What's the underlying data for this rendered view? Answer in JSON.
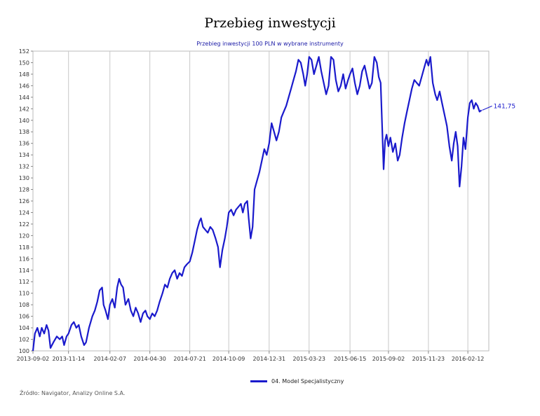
{
  "chart_data": {
    "type": "line",
    "title": "Przebieg inwestycji",
    "subtitle": "Przebieg inwestycji 100 PLN w wybrane instrumenty",
    "xlabel": "",
    "ylabel": "",
    "ylim": [
      100,
      152
    ],
    "yticks": [
      100,
      102,
      104,
      106,
      108,
      110,
      112,
      114,
      116,
      118,
      120,
      122,
      124,
      126,
      128,
      130,
      132,
      134,
      136,
      138,
      140,
      142,
      144,
      146,
      148,
      150,
      152
    ],
    "xticks": [
      "2013-09-02",
      "2013-11-14",
      "2014-02-07",
      "2014-04-30",
      "2014-07-21",
      "2014-10-09",
      "2014-12-31",
      "2015-03-23",
      "2015-06-15",
      "2015-09-02",
      "2015-11-23",
      "2016-02-12"
    ],
    "grid": "vertical",
    "legend_position": "bottom",
    "series": [
      {
        "name": "04. Model Specjalistyczny",
        "color": "#1a1acc",
        "last_value_label": "141,75",
        "points": [
          [
            "2013-09-02",
            100.0
          ],
          [
            "2013-09-06",
            103.0
          ],
          [
            "2013-09-11",
            104.0
          ],
          [
            "2013-09-16",
            102.5
          ],
          [
            "2013-09-20",
            104.0
          ],
          [
            "2013-09-25",
            103.0
          ],
          [
            "2013-09-30",
            104.5
          ],
          [
            "2013-10-04",
            103.5
          ],
          [
            "2013-10-08",
            100.5
          ],
          [
            "2013-10-14",
            101.5
          ],
          [
            "2013-10-21",
            102.5
          ],
          [
            "2013-10-27",
            102.0
          ],
          [
            "2013-11-01",
            102.5
          ],
          [
            "2013-11-05",
            101.0
          ],
          [
            "2013-11-10",
            102.5
          ],
          [
            "2013-11-14",
            103.0
          ],
          [
            "2013-11-20",
            104.5
          ],
          [
            "2013-11-25",
            105.0
          ],
          [
            "2013-11-30",
            104.0
          ],
          [
            "2013-12-05",
            104.5
          ],
          [
            "2013-12-10",
            102.5
          ],
          [
            "2013-12-16",
            101.0
          ],
          [
            "2013-12-20",
            101.5
          ],
          [
            "2013-12-26",
            104.0
          ],
          [
            "2014-01-02",
            106.0
          ],
          [
            "2014-01-07",
            107.0
          ],
          [
            "2014-01-12",
            108.5
          ],
          [
            "2014-01-17",
            110.5
          ],
          [
            "2014-01-22",
            111.0
          ],
          [
            "2014-01-25",
            108.0
          ],
          [
            "2014-01-29",
            107.0
          ],
          [
            "2014-02-03",
            105.5
          ],
          [
            "2014-02-07",
            108.0
          ],
          [
            "2014-02-12",
            109.0
          ],
          [
            "2014-02-17",
            107.5
          ],
          [
            "2014-02-22",
            111.0
          ],
          [
            "2014-02-26",
            112.5
          ],
          [
            "2014-03-02",
            111.5
          ],
          [
            "2014-03-06",
            111.0
          ],
          [
            "2014-03-11",
            108.0
          ],
          [
            "2014-03-17",
            109.0
          ],
          [
            "2014-03-22",
            107.0
          ],
          [
            "2014-03-27",
            106.0
          ],
          [
            "2014-04-01",
            107.5
          ],
          [
            "2014-04-06",
            106.5
          ],
          [
            "2014-04-11",
            105.0
          ],
          [
            "2014-04-16",
            106.5
          ],
          [
            "2014-04-21",
            107.0
          ],
          [
            "2014-04-25",
            106.0
          ],
          [
            "2014-04-30",
            105.5
          ],
          [
            "2014-05-05",
            106.5
          ],
          [
            "2014-05-10",
            106.0
          ],
          [
            "2014-05-15",
            107.0
          ],
          [
            "2014-05-20",
            108.5
          ],
          [
            "2014-05-26",
            110.0
          ],
          [
            "2014-05-31",
            111.5
          ],
          [
            "2014-06-05",
            111.0
          ],
          [
            "2014-06-10",
            112.5
          ],
          [
            "2014-06-15",
            113.5
          ],
          [
            "2014-06-20",
            114.0
          ],
          [
            "2014-06-25",
            112.5
          ],
          [
            "2014-06-30",
            113.5
          ],
          [
            "2014-07-05",
            113.0
          ],
          [
            "2014-07-10",
            114.5
          ],
          [
            "2014-07-15",
            115.0
          ],
          [
            "2014-07-21",
            115.5
          ],
          [
            "2014-07-26",
            117.0
          ],
          [
            "2014-07-31",
            119.0
          ],
          [
            "2014-08-05",
            121.0
          ],
          [
            "2014-08-10",
            122.5
          ],
          [
            "2014-08-13",
            123.0
          ],
          [
            "2014-08-17",
            121.5
          ],
          [
            "2014-08-22",
            121.0
          ],
          [
            "2014-08-27",
            120.5
          ],
          [
            "2014-09-01",
            121.5
          ],
          [
            "2014-09-06",
            121.0
          ],
          [
            "2014-09-12",
            119.5
          ],
          [
            "2014-09-17",
            118.0
          ],
          [
            "2014-09-21",
            114.5
          ],
          [
            "2014-09-26",
            117.5
          ],
          [
            "2014-10-01",
            119.5
          ],
          [
            "2014-10-05",
            121.5
          ],
          [
            "2014-10-09",
            124.0
          ],
          [
            "2014-10-14",
            124.5
          ],
          [
            "2014-10-19",
            123.5
          ],
          [
            "2014-10-24",
            124.5
          ],
          [
            "2014-10-29",
            125.0
          ],
          [
            "2014-11-03",
            125.5
          ],
          [
            "2014-11-07",
            124.0
          ],
          [
            "2014-11-11",
            125.5
          ],
          [
            "2014-11-16",
            126.0
          ],
          [
            "2014-11-19",
            123.0
          ],
          [
            "2014-11-23",
            119.5
          ],
          [
            "2014-11-27",
            121.5
          ],
          [
            "2014-12-01",
            128.0
          ],
          [
            "2014-12-06",
            129.5
          ],
          [
            "2014-12-11",
            131.0
          ],
          [
            "2014-12-16",
            133.0
          ],
          [
            "2014-12-21",
            135.0
          ],
          [
            "2014-12-26",
            134.0
          ],
          [
            "2014-12-31",
            136.0
          ],
          [
            "2015-01-05",
            139.5
          ],
          [
            "2015-01-10",
            138.0
          ],
          [
            "2015-01-15",
            136.5
          ],
          [
            "2015-01-20",
            138.0
          ],
          [
            "2015-01-25",
            140.5
          ],
          [
            "2015-01-30",
            141.5
          ],
          [
            "2015-02-04",
            142.5
          ],
          [
            "2015-02-09",
            144.0
          ],
          [
            "2015-02-14",
            145.5
          ],
          [
            "2015-02-19",
            147.0
          ],
          [
            "2015-02-24",
            148.5
          ],
          [
            "2015-03-01",
            150.5
          ],
          [
            "2015-03-06",
            150.0
          ],
          [
            "2015-03-11",
            148.0
          ],
          [
            "2015-03-15",
            146.0
          ],
          [
            "2015-03-19",
            148.0
          ],
          [
            "2015-03-23",
            151.0
          ],
          [
            "2015-03-28",
            150.5
          ],
          [
            "2015-04-02",
            148.0
          ],
          [
            "2015-04-07",
            149.5
          ],
          [
            "2015-04-12",
            151.0
          ],
          [
            "2015-04-17",
            148.5
          ],
          [
            "2015-04-22",
            146.5
          ],
          [
            "2015-04-27",
            144.5
          ],
          [
            "2015-05-02",
            146.0
          ],
          [
            "2015-05-07",
            151.0
          ],
          [
            "2015-05-12",
            150.5
          ],
          [
            "2015-05-17",
            147.0
          ],
          [
            "2015-05-22",
            145.0
          ],
          [
            "2015-05-27",
            146.0
          ],
          [
            "2015-06-01",
            148.0
          ],
          [
            "2015-06-06",
            145.5
          ],
          [
            "2015-06-11",
            147.0
          ],
          [
            "2015-06-15",
            148.0
          ],
          [
            "2015-06-20",
            149.0
          ],
          [
            "2015-06-25",
            146.5
          ],
          [
            "2015-06-30",
            144.5
          ],
          [
            "2015-07-05",
            146.0
          ],
          [
            "2015-07-10",
            148.5
          ],
          [
            "2015-07-15",
            149.5
          ],
          [
            "2015-07-20",
            147.5
          ],
          [
            "2015-07-25",
            145.5
          ],
          [
            "2015-07-30",
            146.5
          ],
          [
            "2015-08-04",
            151.0
          ],
          [
            "2015-08-09",
            150.0
          ],
          [
            "2015-08-13",
            147.5
          ],
          [
            "2015-08-17",
            146.5
          ],
          [
            "2015-08-20",
            139.0
          ],
          [
            "2015-08-23",
            131.5
          ],
          [
            "2015-08-26",
            136.5
          ],
          [
            "2015-08-29",
            137.5
          ],
          [
            "2015-09-02",
            135.5
          ],
          [
            "2015-09-06",
            137.0
          ],
          [
            "2015-09-11",
            134.5
          ],
          [
            "2015-09-16",
            136.0
          ],
          [
            "2015-09-21",
            133.0
          ],
          [
            "2015-09-25",
            134.0
          ],
          [
            "2015-09-30",
            137.0
          ],
          [
            "2015-10-05",
            139.5
          ],
          [
            "2015-10-10",
            141.5
          ],
          [
            "2015-10-15",
            143.5
          ],
          [
            "2015-10-20",
            145.5
          ],
          [
            "2015-10-25",
            147.0
          ],
          [
            "2015-10-30",
            146.5
          ],
          [
            "2015-11-04",
            146.0
          ],
          [
            "2015-11-09",
            147.5
          ],
          [
            "2015-11-14",
            149.0
          ],
          [
            "2015-11-19",
            150.5
          ],
          [
            "2015-11-23",
            149.5
          ],
          [
            "2015-11-27",
            151.0
          ],
          [
            "2015-12-02",
            146.5
          ],
          [
            "2015-12-07",
            144.5
          ],
          [
            "2015-12-11",
            143.5
          ],
          [
            "2015-12-16",
            145.0
          ],
          [
            "2015-12-21",
            143.0
          ],
          [
            "2015-12-26",
            141.0
          ],
          [
            "2015-12-31",
            139.0
          ],
          [
            "2016-01-05",
            135.5
          ],
          [
            "2016-01-10",
            133.0
          ],
          [
            "2016-01-14",
            136.0
          ],
          [
            "2016-01-18",
            138.0
          ],
          [
            "2016-01-22",
            135.5
          ],
          [
            "2016-01-26",
            128.5
          ],
          [
            "2016-01-30",
            132.0
          ],
          [
            "2016-02-03",
            137.0
          ],
          [
            "2016-02-07",
            135.0
          ],
          [
            "2016-02-12",
            140.5
          ],
          [
            "2016-02-16",
            143.0
          ],
          [
            "2016-02-20",
            143.5
          ],
          [
            "2016-02-24",
            142.0
          ],
          [
            "2016-02-28",
            143.0
          ],
          [
            "2016-03-03",
            142.5
          ],
          [
            "2016-03-07",
            141.5
          ],
          [
            "2016-03-11",
            141.75
          ]
        ]
      }
    ],
    "source": "Źródło: Navigator, Analizy Online S.A."
  }
}
